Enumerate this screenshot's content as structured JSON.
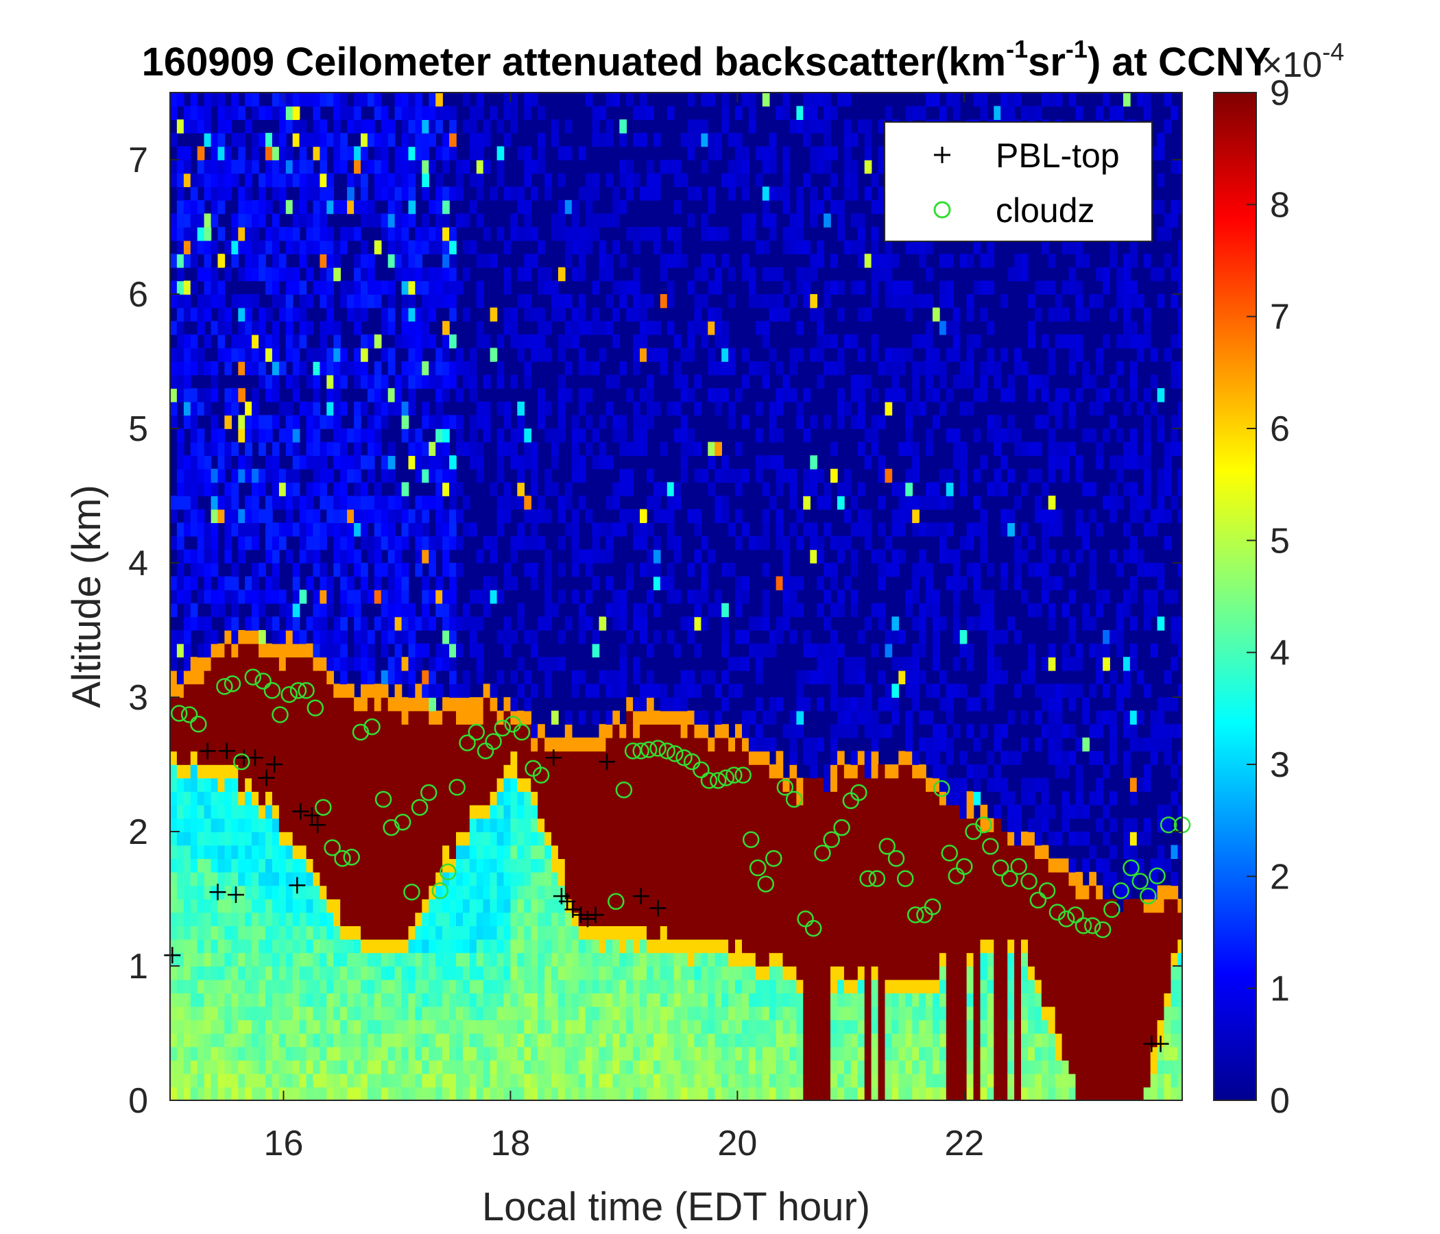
{
  "chart_data": {
    "type": "heatmap",
    "title": {
      "prefix": "160909 Ceilometer attenuated backscatter(km",
      "sup1": "-1",
      "mid": "sr",
      "sup2": "-1",
      "suffix": ") at CCNY"
    },
    "xlabel": "Local time (EDT hour)",
    "ylabel": "Altitude (km)",
    "xlim": [
      15.0,
      23.92
    ],
    "ylim": [
      0,
      7.5
    ],
    "xticks": [
      16,
      18,
      20,
      22
    ],
    "yticks": [
      0,
      1,
      2,
      3,
      4,
      5,
      6,
      7
    ],
    "colorbar": {
      "colormap": "jet",
      "range": [
        0,
        9
      ],
      "ticks": [
        0,
        1,
        2,
        3,
        4,
        5,
        6,
        7,
        8,
        9
      ],
      "exponent_label": {
        "base": "×10",
        "power": "-4"
      }
    },
    "legend": {
      "position": "top-right",
      "entries": [
        {
          "label": "PBL-top",
          "marker": "+",
          "color": "#000000"
        },
        {
          "label": "cloudz",
          "marker": "o",
          "color": "#33dd33"
        }
      ]
    },
    "series": [
      {
        "name": "PBL-top",
        "x": [
          15.02,
          15.33,
          15.42,
          15.5,
          15.58,
          15.65,
          15.75,
          15.85,
          15.92,
          16.12,
          16.15,
          16.25,
          16.3,
          18.38,
          18.45,
          18.5,
          18.55,
          18.62,
          18.68,
          18.75,
          18.85,
          19.15,
          19.3,
          23.65,
          23.73
        ],
        "y": [
          1.08,
          2.6,
          1.55,
          2.6,
          1.53,
          2.55,
          2.55,
          2.4,
          2.5,
          1.6,
          2.15,
          2.12,
          2.05,
          2.55,
          1.52,
          1.48,
          1.42,
          1.38,
          1.35,
          1.38,
          2.52,
          1.52,
          1.43,
          0.42,
          0.42
        ]
      },
      {
        "name": "cloudz",
        "x": [
          15.08,
          15.17,
          15.25,
          15.48,
          15.55,
          15.63,
          15.73,
          15.82,
          15.9,
          15.97,
          16.05,
          16.13,
          16.2,
          16.28,
          16.35,
          16.43,
          16.52,
          16.6,
          16.68,
          16.78,
          16.88,
          16.95,
          17.05,
          17.13,
          17.2,
          17.28,
          17.38,
          17.45,
          17.53,
          17.62,
          17.7,
          17.78,
          17.85,
          17.93,
          18.02,
          18.1,
          18.2,
          18.27,
          18.93,
          19.0,
          19.08,
          19.15,
          19.22,
          19.3,
          19.38,
          19.45,
          19.53,
          19.6,
          19.68,
          19.75,
          19.83,
          19.9,
          19.97,
          20.05,
          20.12,
          20.18,
          20.25,
          20.32,
          20.42,
          20.5,
          20.6,
          20.67,
          20.75,
          20.83,
          20.92,
          21.0,
          21.07,
          21.15,
          21.23,
          21.32,
          21.4,
          21.48,
          21.57,
          21.65,
          21.72,
          21.8,
          21.87,
          21.93,
          22.0,
          22.08,
          22.17,
          22.23,
          22.32,
          22.4,
          22.48,
          22.57,
          22.65,
          22.73,
          22.82,
          22.9,
          22.98,
          23.05,
          23.13,
          23.22,
          23.3,
          23.38,
          23.47,
          23.55,
          23.62,
          23.7,
          23.8,
          23.92
        ],
        "y": [
          2.88,
          2.87,
          2.8,
          3.08,
          3.1,
          2.52,
          3.15,
          3.12,
          3.05,
          2.87,
          3.02,
          3.05,
          3.05,
          2.92,
          2.18,
          1.88,
          1.8,
          1.81,
          2.74,
          2.78,
          2.24,
          2.03,
          2.07,
          1.55,
          2.18,
          2.29,
          1.56,
          1.7,
          2.33,
          2.66,
          2.74,
          2.6,
          2.67,
          2.77,
          2.8,
          2.74,
          2.47,
          2.42,
          1.48,
          2.31,
          2.6,
          2.6,
          2.61,
          2.62,
          2.6,
          2.58,
          2.55,
          2.52,
          2.46,
          2.38,
          2.38,
          2.4,
          2.42,
          2.42,
          1.94,
          1.73,
          1.61,
          1.8,
          2.33,
          2.24,
          1.35,
          1.28,
          1.84,
          1.94,
          2.03,
          2.23,
          2.29,
          1.65,
          1.65,
          1.89,
          1.8,
          1.65,
          1.38,
          1.38,
          1.44,
          2.32,
          1.84,
          1.67,
          1.74,
          2.0,
          2.05,
          1.89,
          1.73,
          1.65,
          1.74,
          1.63,
          1.49,
          1.56,
          1.4,
          1.35,
          1.38,
          1.3,
          1.3,
          1.27,
          1.42,
          1.56,
          1.73,
          1.63,
          1.52,
          1.67,
          2.05,
          2.05
        ]
      }
    ],
    "grid": false
  }
}
